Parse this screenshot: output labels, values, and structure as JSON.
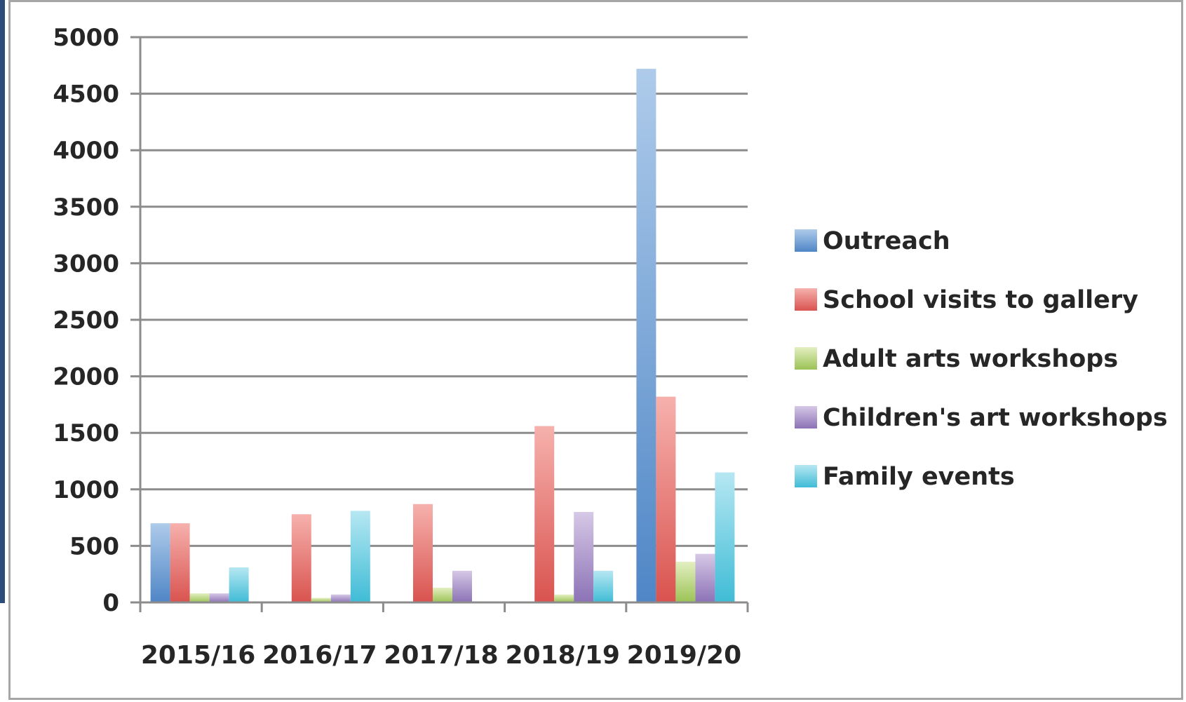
{
  "chart_data": {
    "type": "bar",
    "title": "",
    "xlabel": "",
    "ylabel": "",
    "categories": [
      "2015/16",
      "2016/17",
      "2017/18",
      "2018/19",
      "2019/20"
    ],
    "ylim": [
      0,
      5000
    ],
    "yticks": [
      0,
      500,
      1000,
      1500,
      2000,
      2500,
      3000,
      3500,
      4000,
      4500,
      5000
    ],
    "grid": true,
    "legend_position": "right",
    "series": [
      {
        "name": "Outreach",
        "values": [
          700,
          0,
          0,
          0,
          4720
        ],
        "color_top": "#aecbea",
        "color_bottom": "#4f86c6"
      },
      {
        "name": "School visits to gallery",
        "values": [
          700,
          780,
          870,
          1560,
          1820
        ],
        "color_top": "#f6b1ad",
        "color_bottom": "#d9534f"
      },
      {
        "name": "Adult arts workshops",
        "values": [
          80,
          40,
          130,
          70,
          360
        ],
        "color_top": "#e3efc1",
        "color_bottom": "#9bc255"
      },
      {
        "name": "Children's art workshops",
        "values": [
          80,
          70,
          280,
          800,
          430
        ],
        "color_top": "#d6c8e6",
        "color_bottom": "#8c72b6"
      },
      {
        "name": "Family events",
        "values": [
          310,
          810,
          0,
          280,
          1150
        ],
        "color_top": "#b6e7f2",
        "color_bottom": "#3fbcd6"
      }
    ]
  }
}
